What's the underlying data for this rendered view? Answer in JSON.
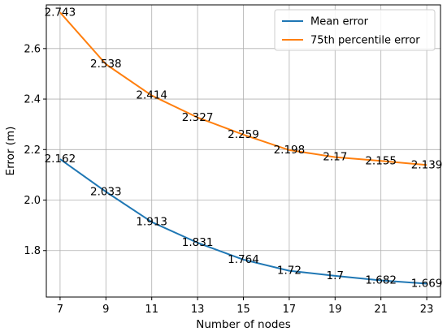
{
  "chart_data": {
    "type": "line",
    "xlabel": "Number of nodes",
    "ylabel": "Error (m)",
    "x": [
      7,
      9,
      11,
      13,
      15,
      17,
      19,
      21,
      23
    ],
    "xlim": [
      6.4,
      23.6
    ],
    "ylim": [
      1.616,
      2.773
    ],
    "xticks": [
      "7",
      "9",
      "11",
      "13",
      "15",
      "17",
      "19",
      "21",
      "23"
    ],
    "yticks": [
      "1.8",
      "2.0",
      "2.2",
      "2.4",
      "2.6"
    ],
    "grid": true,
    "legend_position": "top-right",
    "series": [
      {
        "name": "Mean error",
        "color": "#1f77b4",
        "values": [
          2.162,
          2.033,
          1.913,
          1.831,
          1.764,
          1.72,
          1.7,
          1.682,
          1.669
        ],
        "labels": [
          "2.162",
          "2.033",
          "1.913",
          "1.831",
          "1.764",
          "1.72",
          "1.7",
          "1.682",
          "1.669"
        ]
      },
      {
        "name": "75th percentile error",
        "color": "#ff7f0e",
        "values": [
          2.743,
          2.538,
          2.414,
          2.327,
          2.259,
          2.198,
          2.17,
          2.155,
          2.139
        ],
        "labels": [
          "2.743",
          "2.538",
          "2.414",
          "2.327",
          "2.259",
          "2.198",
          "2.17",
          "2.155",
          "2.139"
        ]
      }
    ]
  }
}
